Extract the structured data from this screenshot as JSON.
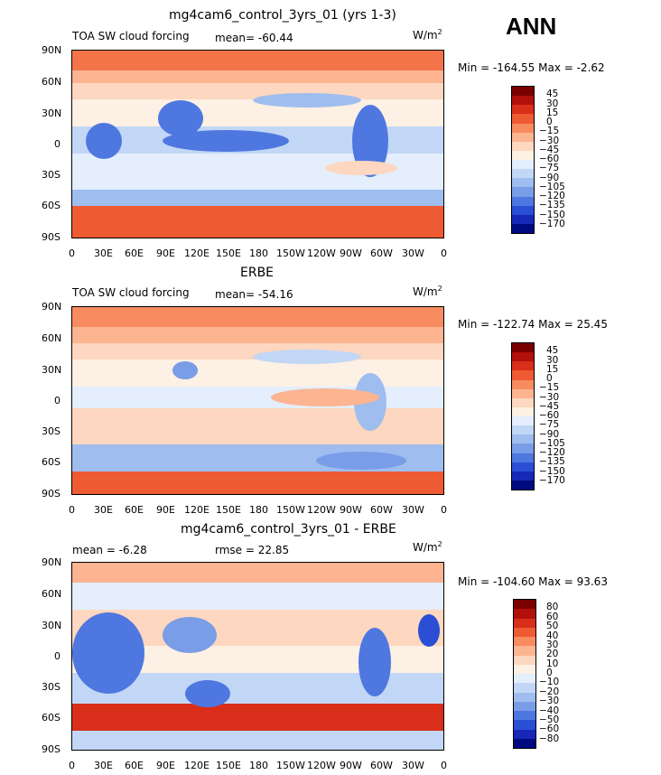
{
  "season": "ANN",
  "units_base": "W/m",
  "units_exp": "2",
  "lat_labels": [
    "90N",
    "60N",
    "30N",
    "0",
    "30S",
    "60S",
    "90S"
  ],
  "lon_labels": [
    "0",
    "30E",
    "60E",
    "90E",
    "120E",
    "150E",
    "180",
    "150W",
    "120W",
    "90W",
    "60W",
    "30W",
    "0"
  ],
  "panels": [
    {
      "title": "mg4cam6_control_3yrs_01 (yrs 1-3)",
      "left_label": "TOA SW cloud forcing",
      "center_label": "mean= -60.44",
      "minmax": "Min = -164.55 Max =  -2.62",
      "colorbar_labels": [
        "45",
        "30",
        "15",
        "0",
        "-15",
        "-30",
        "-45",
        "-60",
        "-75",
        "-90",
        "-105",
        "-120",
        "-135",
        "-150",
        "-170"
      ],
      "colors": [
        "#7a0000",
        "#b2100a",
        "#d92e1a",
        "#ee5a32",
        "#f88b60",
        "#fcb491",
        "#fdd7bf",
        "#fdf0e4",
        "#e4eefc",
        "#c2d7f5",
        "#9fbdef",
        "#7a9de8",
        "#4f77e0",
        "#2b4fd4",
        "#1628b8",
        "#000a80"
      ]
    },
    {
      "title": "ERBE",
      "left_label": "TOA SW cloud forcing",
      "center_label": "mean= -54.16",
      "minmax": "Min = -122.74 Max =  25.45",
      "colorbar_labels": [
        "45",
        "30",
        "15",
        "0",
        "-15",
        "-30",
        "-45",
        "-60",
        "-75",
        "-90",
        "-105",
        "-120",
        "-135",
        "-150",
        "-170"
      ],
      "colors": [
        "#7a0000",
        "#b2100a",
        "#d92e1a",
        "#ee5a32",
        "#f88b60",
        "#fcb491",
        "#fdd7bf",
        "#fdf0e4",
        "#e4eefc",
        "#c2d7f5",
        "#9fbdef",
        "#7a9de8",
        "#4f77e0",
        "#2b4fd4",
        "#1628b8",
        "#000a80"
      ]
    },
    {
      "title": "mg4cam6_control_3yrs_01 - ERBE",
      "left_label": "mean =  -6.28",
      "center_label": "rmse =  22.85",
      "minmax": "Min = -104.60 Max =  93.63",
      "colorbar_labels": [
        "80",
        "60",
        "50",
        "40",
        "30",
        "20",
        "10",
        "0",
        "-10",
        "-20",
        "-30",
        "-40",
        "-50",
        "-60",
        "-80"
      ],
      "colors": [
        "#7a0000",
        "#b2100a",
        "#d92e1a",
        "#ee5a32",
        "#f88b60",
        "#fcb491",
        "#fdd7bf",
        "#fdf0e4",
        "#e4eefc",
        "#c2d7f5",
        "#9fbdef",
        "#7a9de8",
        "#4f77e0",
        "#2b4fd4",
        "#1628b8",
        "#000a80"
      ]
    }
  ]
}
